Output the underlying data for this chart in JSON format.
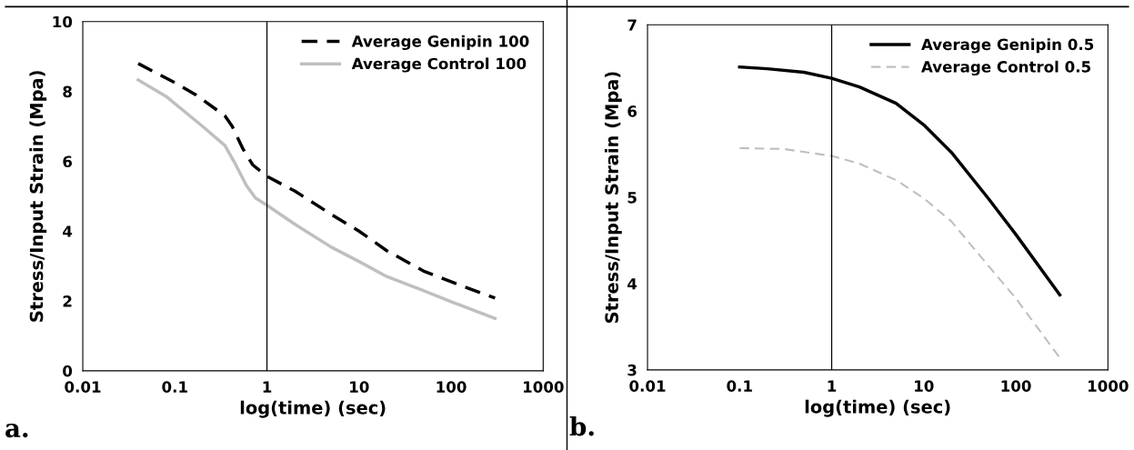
{
  "chart_data": [
    {
      "type": "line",
      "xlabel": "log(time) (sec)",
      "ylabel": "Stress/Input Strain (Mpa)",
      "annotations": [
        "a."
      ],
      "log": "x",
      "xlim": [
        0.01,
        1000
      ],
      "xticks": [
        0.01,
        0.1,
        1,
        10,
        100,
        1000
      ],
      "ylim": [
        0,
        10
      ],
      "yticks": [
        0,
        2,
        4,
        6,
        8,
        10
      ],
      "grid": false,
      "legend": "top right",
      "ref_lines": [
        {
          "axis": "x",
          "value": 1,
          "label": null,
          "color": "#000000",
          "line_style": "solid"
        }
      ],
      "series": [
        {
          "name": "Average Genipin 100",
          "color": "#000000",
          "line_style": "dashed",
          "x": [
            0.04,
            0.1,
            0.17,
            0.35,
            0.42,
            0.55,
            0.7,
            1,
            2,
            5,
            10,
            20,
            50,
            100,
            300
          ],
          "values": [
            8.8,
            8.25,
            7.9,
            7.3,
            7.0,
            6.35,
            5.9,
            5.57,
            5.15,
            4.48,
            4.0,
            3.44,
            2.86,
            2.55,
            2.08
          ]
        },
        {
          "name": "Average Control 100",
          "color": "#bfbfbf",
          "line_style": "solid",
          "x": [
            0.04,
            0.08,
            0.2,
            0.35,
            0.45,
            0.6,
            0.75,
            1,
            2,
            5,
            10,
            20,
            50,
            100,
            300
          ],
          "values": [
            8.33,
            7.86,
            7.0,
            6.45,
            5.94,
            5.3,
            4.95,
            4.74,
            4.2,
            3.54,
            3.13,
            2.7,
            2.3,
            1.98,
            1.5
          ]
        }
      ]
    },
    {
      "type": "line",
      "xlabel": "log(time) (sec)",
      "ylabel": "Stress/Input Strain (Mpa)",
      "annotations": [
        "b."
      ],
      "log": "x",
      "xlim": [
        0.01,
        1000
      ],
      "xticks": [
        0.01,
        0.1,
        1,
        10,
        100,
        1000
      ],
      "ylim": [
        3,
        7
      ],
      "yticks": [
        3,
        4,
        5,
        6,
        7
      ],
      "grid": false,
      "legend": "top right",
      "ref_lines": [
        {
          "axis": "x",
          "value": 1,
          "label": null,
          "color": "#000000",
          "line_style": "solid"
        }
      ],
      "series": [
        {
          "name": "Average Genipin 0.5",
          "color": "#000000",
          "line_style": "solid",
          "x": [
            0.1,
            0.2,
            0.5,
            1,
            2,
            5,
            10,
            20,
            50,
            100,
            300
          ],
          "values": [
            6.51,
            6.49,
            6.45,
            6.38,
            6.28,
            6.09,
            5.84,
            5.52,
            4.99,
            4.57,
            3.87
          ]
        },
        {
          "name": "Average Control 0.5",
          "color": "#bfbfbf",
          "line_style": "dashed",
          "x": [
            0.1,
            0.3,
            1,
            2,
            5,
            10,
            20,
            50,
            100,
            300
          ],
          "values": [
            5.57,
            5.56,
            5.48,
            5.39,
            5.2,
            4.99,
            4.72,
            4.21,
            3.83,
            3.14
          ]
        }
      ]
    }
  ]
}
